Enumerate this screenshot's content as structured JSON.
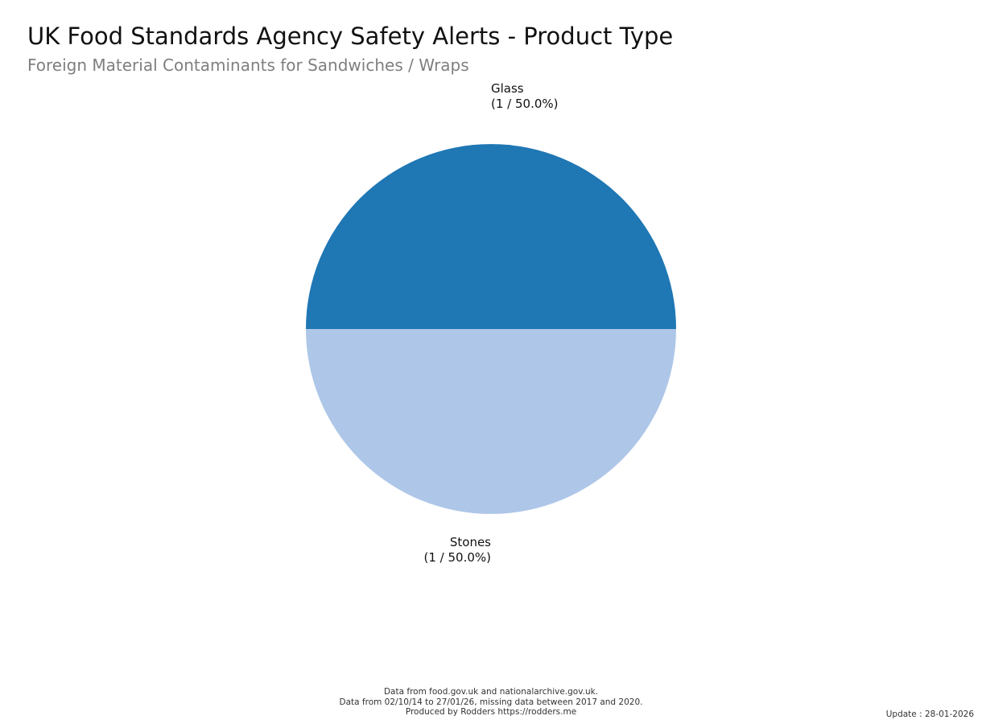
{
  "chart_data": {
    "type": "pie",
    "title": "UK Food Standards Agency Safety Alerts - Product Type",
    "subtitle": "Foreign Material Contaminants for Sandwiches / Wraps",
    "slices": [
      {
        "label": "Glass",
        "value": 1,
        "percent": 50.0,
        "value_label": "(1 / 50.0%)",
        "color": "#1f77b4"
      },
      {
        "label": "Stones",
        "value": 1,
        "percent": 50.0,
        "value_label": "(1 / 50.0%)",
        "color": "#aec7e8"
      }
    ]
  },
  "footer": {
    "line1": "Data from food.gov.uk and nationalarchive.gov.uk.",
    "line2": "Data from 02/10/14 to 27/01/26, missing data between 2017 and 2020.",
    "line3": "Produced by Rodders https://rodders.me"
  },
  "update": "Update : 28-01-2026"
}
